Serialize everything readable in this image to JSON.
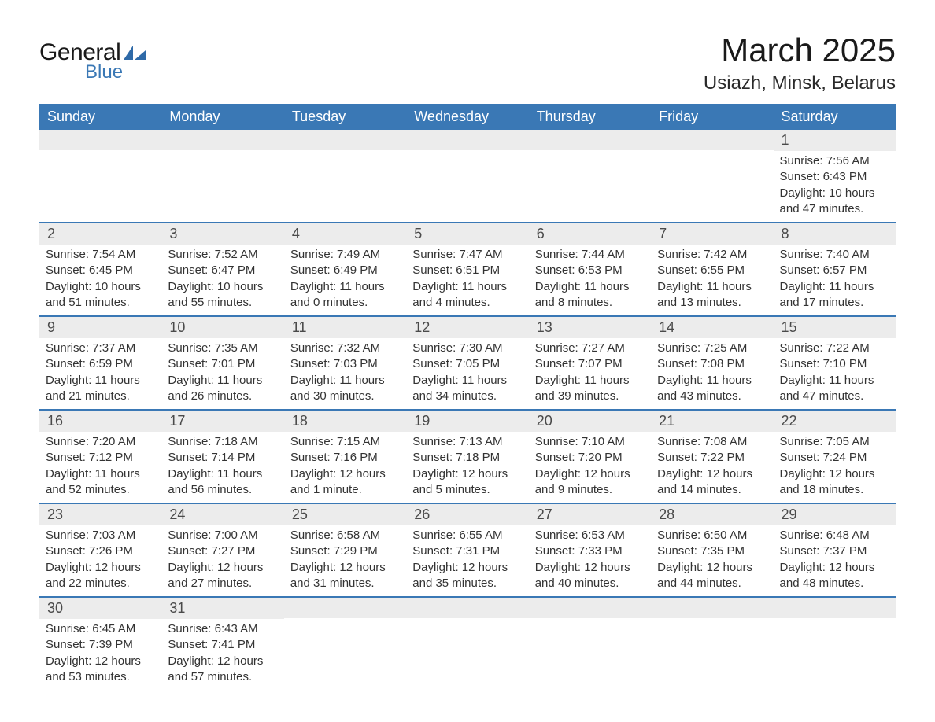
{
  "brand": {
    "word1": "General",
    "word2": "Blue",
    "logo_color": "#2f6aa8",
    "text_color_dark": "#1a1a1a",
    "text_color_blue": "#3a78b5"
  },
  "title": "March 2025",
  "location": "Usiazh, Minsk, Belarus",
  "colors": {
    "header_bg": "#3a78b5",
    "header_text": "#ffffff",
    "daynum_bg": "#ececec",
    "daynum_text": "#4a4a4a",
    "body_text": "#333333",
    "row_border": "#3a78b5",
    "page_bg": "#ffffff"
  },
  "typography": {
    "title_fontsize": 42,
    "location_fontsize": 24,
    "header_fontsize": 18,
    "daynum_fontsize": 18,
    "data_fontsize": 15
  },
  "weekdays": [
    "Sunday",
    "Monday",
    "Tuesday",
    "Wednesday",
    "Thursday",
    "Friday",
    "Saturday"
  ],
  "weeks": [
    [
      {
        "day": "",
        "sunrise": "",
        "sunset": "",
        "daylight": ""
      },
      {
        "day": "",
        "sunrise": "",
        "sunset": "",
        "daylight": ""
      },
      {
        "day": "",
        "sunrise": "",
        "sunset": "",
        "daylight": ""
      },
      {
        "day": "",
        "sunrise": "",
        "sunset": "",
        "daylight": ""
      },
      {
        "day": "",
        "sunrise": "",
        "sunset": "",
        "daylight": ""
      },
      {
        "day": "",
        "sunrise": "",
        "sunset": "",
        "daylight": ""
      },
      {
        "day": "1",
        "sunrise": "Sunrise: 7:56 AM",
        "sunset": "Sunset: 6:43 PM",
        "daylight": "Daylight: 10 hours and 47 minutes."
      }
    ],
    [
      {
        "day": "2",
        "sunrise": "Sunrise: 7:54 AM",
        "sunset": "Sunset: 6:45 PM",
        "daylight": "Daylight: 10 hours and 51 minutes."
      },
      {
        "day": "3",
        "sunrise": "Sunrise: 7:52 AM",
        "sunset": "Sunset: 6:47 PM",
        "daylight": "Daylight: 10 hours and 55 minutes."
      },
      {
        "day": "4",
        "sunrise": "Sunrise: 7:49 AM",
        "sunset": "Sunset: 6:49 PM",
        "daylight": "Daylight: 11 hours and 0 minutes."
      },
      {
        "day": "5",
        "sunrise": "Sunrise: 7:47 AM",
        "sunset": "Sunset: 6:51 PM",
        "daylight": "Daylight: 11 hours and 4 minutes."
      },
      {
        "day": "6",
        "sunrise": "Sunrise: 7:44 AM",
        "sunset": "Sunset: 6:53 PM",
        "daylight": "Daylight: 11 hours and 8 minutes."
      },
      {
        "day": "7",
        "sunrise": "Sunrise: 7:42 AM",
        "sunset": "Sunset: 6:55 PM",
        "daylight": "Daylight: 11 hours and 13 minutes."
      },
      {
        "day": "8",
        "sunrise": "Sunrise: 7:40 AM",
        "sunset": "Sunset: 6:57 PM",
        "daylight": "Daylight: 11 hours and 17 minutes."
      }
    ],
    [
      {
        "day": "9",
        "sunrise": "Sunrise: 7:37 AM",
        "sunset": "Sunset: 6:59 PM",
        "daylight": "Daylight: 11 hours and 21 minutes."
      },
      {
        "day": "10",
        "sunrise": "Sunrise: 7:35 AM",
        "sunset": "Sunset: 7:01 PM",
        "daylight": "Daylight: 11 hours and 26 minutes."
      },
      {
        "day": "11",
        "sunrise": "Sunrise: 7:32 AM",
        "sunset": "Sunset: 7:03 PM",
        "daylight": "Daylight: 11 hours and 30 minutes."
      },
      {
        "day": "12",
        "sunrise": "Sunrise: 7:30 AM",
        "sunset": "Sunset: 7:05 PM",
        "daylight": "Daylight: 11 hours and 34 minutes."
      },
      {
        "day": "13",
        "sunrise": "Sunrise: 7:27 AM",
        "sunset": "Sunset: 7:07 PM",
        "daylight": "Daylight: 11 hours and 39 minutes."
      },
      {
        "day": "14",
        "sunrise": "Sunrise: 7:25 AM",
        "sunset": "Sunset: 7:08 PM",
        "daylight": "Daylight: 11 hours and 43 minutes."
      },
      {
        "day": "15",
        "sunrise": "Sunrise: 7:22 AM",
        "sunset": "Sunset: 7:10 PM",
        "daylight": "Daylight: 11 hours and 47 minutes."
      }
    ],
    [
      {
        "day": "16",
        "sunrise": "Sunrise: 7:20 AM",
        "sunset": "Sunset: 7:12 PM",
        "daylight": "Daylight: 11 hours and 52 minutes."
      },
      {
        "day": "17",
        "sunrise": "Sunrise: 7:18 AM",
        "sunset": "Sunset: 7:14 PM",
        "daylight": "Daylight: 11 hours and 56 minutes."
      },
      {
        "day": "18",
        "sunrise": "Sunrise: 7:15 AM",
        "sunset": "Sunset: 7:16 PM",
        "daylight": "Daylight: 12 hours and 1 minute."
      },
      {
        "day": "19",
        "sunrise": "Sunrise: 7:13 AM",
        "sunset": "Sunset: 7:18 PM",
        "daylight": "Daylight: 12 hours and 5 minutes."
      },
      {
        "day": "20",
        "sunrise": "Sunrise: 7:10 AM",
        "sunset": "Sunset: 7:20 PM",
        "daylight": "Daylight: 12 hours and 9 minutes."
      },
      {
        "day": "21",
        "sunrise": "Sunrise: 7:08 AM",
        "sunset": "Sunset: 7:22 PM",
        "daylight": "Daylight: 12 hours and 14 minutes."
      },
      {
        "day": "22",
        "sunrise": "Sunrise: 7:05 AM",
        "sunset": "Sunset: 7:24 PM",
        "daylight": "Daylight: 12 hours and 18 minutes."
      }
    ],
    [
      {
        "day": "23",
        "sunrise": "Sunrise: 7:03 AM",
        "sunset": "Sunset: 7:26 PM",
        "daylight": "Daylight: 12 hours and 22 minutes."
      },
      {
        "day": "24",
        "sunrise": "Sunrise: 7:00 AM",
        "sunset": "Sunset: 7:27 PM",
        "daylight": "Daylight: 12 hours and 27 minutes."
      },
      {
        "day": "25",
        "sunrise": "Sunrise: 6:58 AM",
        "sunset": "Sunset: 7:29 PM",
        "daylight": "Daylight: 12 hours and 31 minutes."
      },
      {
        "day": "26",
        "sunrise": "Sunrise: 6:55 AM",
        "sunset": "Sunset: 7:31 PM",
        "daylight": "Daylight: 12 hours and 35 minutes."
      },
      {
        "day": "27",
        "sunrise": "Sunrise: 6:53 AM",
        "sunset": "Sunset: 7:33 PM",
        "daylight": "Daylight: 12 hours and 40 minutes."
      },
      {
        "day": "28",
        "sunrise": "Sunrise: 6:50 AM",
        "sunset": "Sunset: 7:35 PM",
        "daylight": "Daylight: 12 hours and 44 minutes."
      },
      {
        "day": "29",
        "sunrise": "Sunrise: 6:48 AM",
        "sunset": "Sunset: 7:37 PM",
        "daylight": "Daylight: 12 hours and 48 minutes."
      }
    ],
    [
      {
        "day": "30",
        "sunrise": "Sunrise: 6:45 AM",
        "sunset": "Sunset: 7:39 PM",
        "daylight": "Daylight: 12 hours and 53 minutes."
      },
      {
        "day": "31",
        "sunrise": "Sunrise: 6:43 AM",
        "sunset": "Sunset: 7:41 PM",
        "daylight": "Daylight: 12 hours and 57 minutes."
      },
      {
        "day": "",
        "sunrise": "",
        "sunset": "",
        "daylight": ""
      },
      {
        "day": "",
        "sunrise": "",
        "sunset": "",
        "daylight": ""
      },
      {
        "day": "",
        "sunrise": "",
        "sunset": "",
        "daylight": ""
      },
      {
        "day": "",
        "sunrise": "",
        "sunset": "",
        "daylight": ""
      },
      {
        "day": "",
        "sunrise": "",
        "sunset": "",
        "daylight": ""
      }
    ]
  ]
}
